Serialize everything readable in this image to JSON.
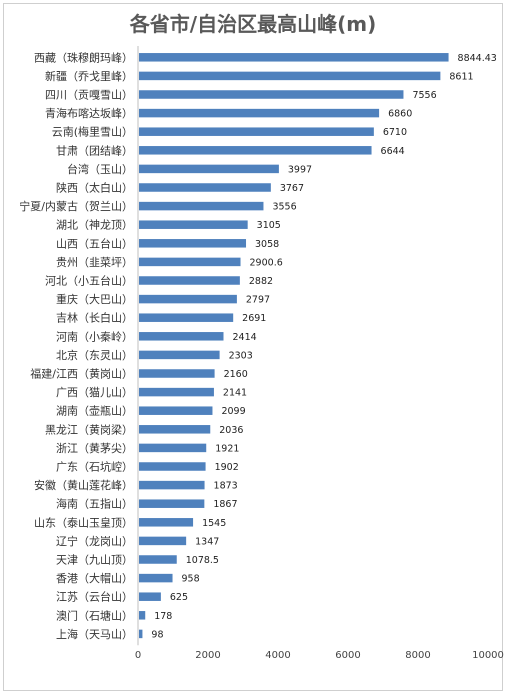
{
  "chart_data": {
    "type": "bar",
    "orientation": "horizontal",
    "title": "各省市/自治区最高山峰(m)",
    "xlabel": "",
    "ylabel": "",
    "xlim": [
      0,
      10000
    ],
    "xticks": [
      0,
      2000,
      4000,
      6000,
      8000,
      10000
    ],
    "grid": false,
    "legend": "none",
    "bar_color": "#4f81bd",
    "categories": [
      "西藏（珠穆朗玛峰）",
      "新疆（乔戈里峰）",
      "四川（贡嘎雪山）",
      "青海布喀达坂峰）",
      "云南(梅里雪山）",
      "甘肃（团结峰）",
      "台湾（玉山）",
      "陕西（太白山）",
      "宁夏/内蒙古（贺兰山）",
      "湖北（神龙顶）",
      "山西（五台山）",
      "贵州（韭菜坪）",
      "河北（小五台山）",
      "重庆（大巴山）",
      "吉林（长白山）",
      "河南（小秦岭）",
      "北京（东灵山）",
      "福建/江西（黄岗山）",
      "广西（猫儿山）",
      "湖南（壶瓶山）",
      "黑龙江（黄岗梁）",
      "浙江（黄茅尖）",
      "广东（石坑崆）",
      "安徽（黄山莲花峰）",
      "海南（五指山）",
      "山东（泰山玉皇顶）",
      "辽宁（龙岗山）",
      "天津（九山顶）",
      "香港（大帽山）",
      "江苏（云台山）",
      "澳门（石塘山）",
      "上海（天马山）"
    ],
    "values": [
      8844.43,
      8611,
      7556,
      6860,
      6710,
      6644,
      3997,
      3767,
      3556,
      3105,
      3058,
      2900.6,
      2882,
      2797,
      2691,
      2414,
      2303,
      2160,
      2141,
      2099,
      2036,
      1921,
      1902,
      1873,
      1867,
      1545,
      1347,
      1078.5,
      958,
      625,
      178,
      98
    ],
    "value_labels": [
      "8844.43",
      "8611",
      "7556",
      "6860",
      "6710",
      "6644",
      "3997",
      "3767",
      "3556",
      "3105",
      "3058",
      "2900.6",
      "2882",
      "2797",
      "2691",
      "2414",
      "2303",
      "2160",
      "2141",
      "2099",
      "2036",
      "1921",
      "1902",
      "1873",
      "1867",
      "1545",
      "1347",
      "1078.5",
      "958",
      "625",
      "178",
      "98"
    ]
  }
}
